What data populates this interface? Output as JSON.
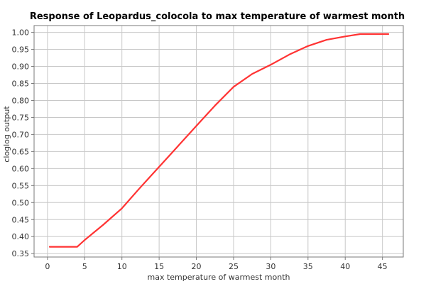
{
  "chart_data": {
    "type": "line",
    "title": "Response of Leopardus_colocola to max temperature of warmest month",
    "xlabel": "max temperature of warmest month",
    "ylabel": "cloglog output",
    "xlim": [
      -1.8,
      47.8
    ],
    "ylim": [
      0.34,
      1.02
    ],
    "x_ticks": [
      "0",
      "5",
      "10",
      "15",
      "20",
      "25",
      "30",
      "35",
      "40",
      "45"
    ],
    "y_ticks": [
      "0.35",
      "0.40",
      "0.45",
      "0.50",
      "0.55",
      "0.60",
      "0.65",
      "0.70",
      "0.75",
      "0.80",
      "0.85",
      "0.90",
      "0.95",
      "1.00"
    ],
    "grid": true,
    "series": [
      {
        "color": "#ff3333",
        "x": [
          0.3,
          2.0,
          4.0,
          5.0,
          7.5,
          10.0,
          12.5,
          15.0,
          17.5,
          20.0,
          22.5,
          25.0,
          27.5,
          30.0,
          32.5,
          35.0,
          37.5,
          40.0,
          42.0,
          44.0,
          45.8
        ],
        "y": [
          0.37,
          0.37,
          0.37,
          0.39,
          0.435,
          0.483,
          0.545,
          0.605,
          0.665,
          0.725,
          0.785,
          0.84,
          0.878,
          0.905,
          0.935,
          0.96,
          0.978,
          0.988,
          0.995,
          0.995,
          0.995
        ]
      }
    ]
  }
}
